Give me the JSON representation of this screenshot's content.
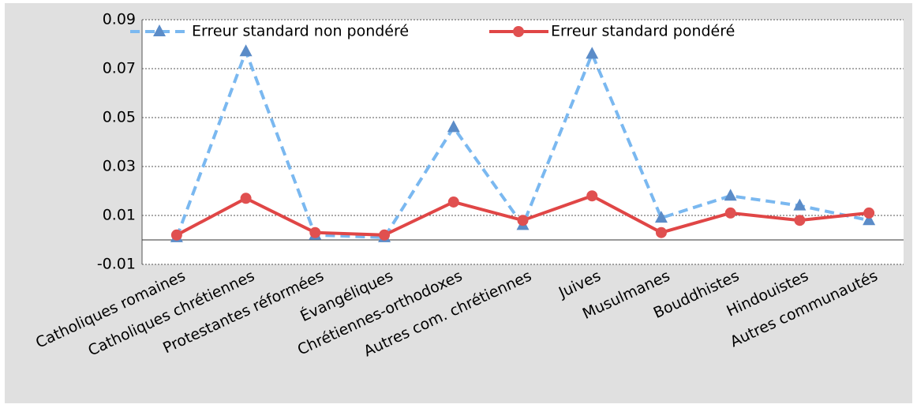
{
  "chart_data": {
    "type": "line",
    "categories": [
      "Catholiques romaines",
      "Catholiques chrétiennes",
      "Protestantes réformées",
      "Évangéliques",
      "Chrétiennes-orthodoxes",
      "Autres com. chrétiennes",
      "Juives",
      "Musulmanes",
      "Bouddhistes",
      "Hindouistes",
      "Autres communautés"
    ],
    "series": [
      {
        "name": "Erreur standard non pondéré",
        "color": "#7ab8f0",
        "marker_color": "#5b8cc8",
        "dash": true,
        "marker": "triangle",
        "values": [
          0.001,
          0.077,
          0.002,
          0.001,
          0.046,
          0.006,
          0.076,
          0.009,
          0.018,
          0.014,
          0.008
        ]
      },
      {
        "name": "Erreur standard pondéré",
        "color": "#e04646",
        "marker_color": "#e05050",
        "dash": false,
        "marker": "circle",
        "values": [
          0.002,
          0.017,
          0.003,
          0.002,
          0.0155,
          0.008,
          0.018,
          0.003,
          0.011,
          0.008,
          0.011
        ]
      }
    ],
    "ylim": [
      -0.01,
      0.09
    ],
    "yticks": [
      -0.01,
      0.01,
      0.03,
      0.05,
      0.07,
      0.09
    ],
    "grid": true,
    "legend": "top"
  }
}
